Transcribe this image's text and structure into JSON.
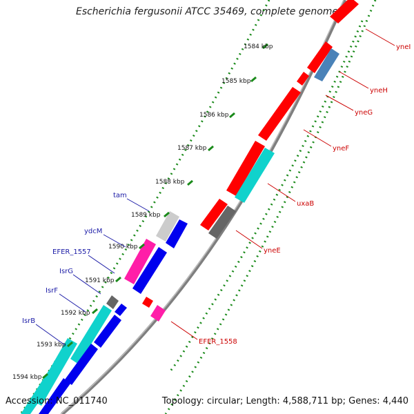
{
  "title": "Escherichia fergusonii ATCC 35469, complete genome",
  "footer": {
    "accession": "Accession: NC_011740",
    "summary": "Topology: circular; Length: 4,588,711 bp; Genes: 4,440"
  },
  "colors": {
    "backbone": "#7f7f7f",
    "gc_dots": "#1a8a1a",
    "gene_red": "#ff0000",
    "gene_blue": "#0000ee",
    "gene_cyan": "#10d2cc",
    "gene_magenta": "#ff1ea8",
    "gene_gray": "#666666",
    "gene_light": "#cccccc",
    "gene_steelblue": "#4a82b8",
    "label_red": "#cc0000",
    "label_blue": "#1a1aa6"
  },
  "ticks": [
    "1584 kbp",
    "1585 kbp",
    "1586 kbp",
    "1587 kbp",
    "1588 kbp",
    "1589 kbp",
    "1590 kbp",
    "1591 kbp",
    "1592 kbp",
    "1593 kbp",
    "1594 kbp"
  ],
  "labels_forward": [
    "yneI",
    "yneH",
    "yneG",
    "yneF",
    "uxaB",
    "yneE",
    "EFER_1558"
  ],
  "labels_reverse": [
    "tam",
    "ydcM",
    "EFER_1557",
    "IsrG",
    "IsrF",
    "IsrB"
  ]
}
